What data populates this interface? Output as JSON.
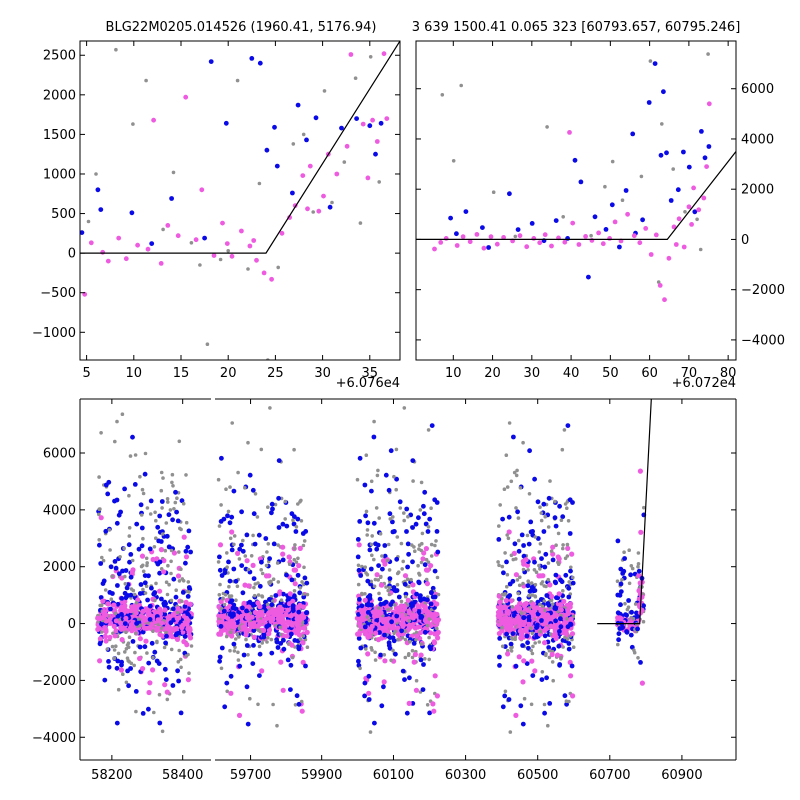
{
  "titles": {
    "left": "BLG22M0205.014526 (1960.41, 5176.94)",
    "right": "3 639 1500.41 0.065 323 [60793.657, 60795.246]"
  },
  "colors": {
    "gray": "#909090",
    "blue": "#0a0ae8",
    "magenta": "#ee5be0",
    "model": "#000000"
  },
  "chart_data": [
    {
      "id": "zoom_left",
      "type": "scatter",
      "offset_label": "+6.076e4",
      "xlim": [
        4.3,
        38.2
      ],
      "ylim": [
        -1350,
        2680
      ],
      "xticks": [
        5,
        10,
        15,
        20,
        25,
        30,
        35
      ],
      "yticks": [
        -1000,
        -500,
        0,
        500,
        1000,
        1500,
        2000,
        2500
      ],
      "yaxis_side": "left",
      "model_line": [
        [
          4.3,
          0
        ],
        [
          24.0,
          0
        ],
        [
          38.2,
          2680
        ]
      ],
      "series": [
        {
          "color": "gray",
          "points": [
            [
              5.2,
              400
            ],
            [
              6.0,
              1000
            ],
            [
              8.1,
              2570
            ],
            [
              9.9,
              1630
            ],
            [
              11.3,
              2180
            ],
            [
              13.1,
              300
            ],
            [
              14.2,
              1020
            ],
            [
              16.1,
              130
            ],
            [
              17.0,
              -150
            ],
            [
              17.8,
              -1150
            ],
            [
              19.2,
              -80
            ],
            [
              20.0,
              30
            ],
            [
              21.0,
              2180
            ],
            [
              22.1,
              -200
            ],
            [
              23.3,
              880
            ],
            [
              24.2,
              -1350
            ],
            [
              25.3,
              -180
            ],
            [
              26.9,
              1380
            ],
            [
              28.0,
              1500
            ],
            [
              29.0,
              520
            ],
            [
              30.2,
              2050
            ],
            [
              31.0,
              640
            ],
            [
              32.3,
              1150
            ],
            [
              33.5,
              2210
            ],
            [
              34.0,
              380
            ],
            [
              35.1,
              2480
            ],
            [
              36.0,
              900
            ]
          ]
        },
        {
          "color": "blue",
          "points": [
            [
              4.5,
              260
            ],
            [
              6.2,
              800
            ],
            [
              6.5,
              550
            ],
            [
              9.8,
              510
            ],
            [
              11.9,
              120
            ],
            [
              14.0,
              690
            ],
            [
              17.5,
              190
            ],
            [
              18.2,
              2420
            ],
            [
              19.8,
              1640
            ],
            [
              22.5,
              2460
            ],
            [
              23.4,
              2400
            ],
            [
              24.1,
              1300
            ],
            [
              24.9,
              1590
            ],
            [
              25.2,
              1100
            ],
            [
              26.8,
              760
            ],
            [
              27.4,
              1870
            ],
            [
              28.3,
              1430
            ],
            [
              29.3,
              1710
            ],
            [
              30.8,
              580
            ],
            [
              32.0,
              1580
            ],
            [
              33.6,
              1700
            ],
            [
              35.0,
              1610
            ],
            [
              35.6,
              1250
            ],
            [
              36.2,
              1640
            ]
          ]
        },
        {
          "color": "magenta",
          "points": [
            [
              4.8,
              -520
            ],
            [
              5.5,
              130
            ],
            [
              6.7,
              10
            ],
            [
              7.3,
              -100
            ],
            [
              8.4,
              190
            ],
            [
              9.2,
              -70
            ],
            [
              10.4,
              100
            ],
            [
              11.5,
              50
            ],
            [
              12.1,
              1680
            ],
            [
              12.9,
              -130
            ],
            [
              13.6,
              350
            ],
            [
              14.7,
              220
            ],
            [
              15.5,
              1970
            ],
            [
              16.6,
              170
            ],
            [
              17.2,
              800
            ],
            [
              18.5,
              -30
            ],
            [
              19.4,
              380
            ],
            [
              20.4,
              -40
            ],
            [
              21.4,
              280
            ],
            [
              22.3,
              90
            ],
            [
              23.0,
              -90
            ],
            [
              23.8,
              -250
            ],
            [
              24.6,
              -330
            ],
            [
              25.7,
              250
            ],
            [
              26.5,
              450
            ],
            [
              27.1,
              600
            ],
            [
              27.9,
              980
            ],
            [
              28.7,
              1100
            ],
            [
              29.6,
              530
            ],
            [
              30.1,
              720
            ],
            [
              30.6,
              1250
            ],
            [
              31.5,
              1000
            ],
            [
              32.6,
              1350
            ],
            [
              33.0,
              2510
            ],
            [
              34.3,
              1630
            ],
            [
              35.3,
              1680
            ],
            [
              35.8,
              1410
            ],
            [
              36.5,
              2520
            ],
            [
              36.8,
              1700
            ],
            [
              34.8,
              950
            ],
            [
              28.4,
              560
            ],
            [
              22.7,
              160
            ],
            [
              19.9,
              120
            ]
          ]
        }
      ]
    },
    {
      "id": "zoom_right",
      "type": "scatter",
      "offset_label": "+6.072e4",
      "xlim": [
        0.5,
        82.0
      ],
      "ylim": [
        -4800,
        7900
      ],
      "xticks": [
        10,
        20,
        30,
        40,
        50,
        60,
        70,
        80
      ],
      "yticks": [
        -4000,
        -2000,
        0,
        2000,
        4000,
        6000
      ],
      "yaxis_side": "right",
      "model_line": [
        [
          0.5,
          0
        ],
        [
          64.5,
          0
        ],
        [
          82.0,
          3500
        ]
      ],
      "series": [
        {
          "color": "gray",
          "points": [
            [
              7.2,
              5760
            ],
            [
              10.1,
              3130
            ],
            [
              12.0,
              6130
            ],
            [
              20.3,
              1880
            ],
            [
              25.8,
              120
            ],
            [
              33.9,
              4480
            ],
            [
              38.0,
              900
            ],
            [
              45.1,
              150
            ],
            [
              48.6,
              2100
            ],
            [
              50.6,
              3100
            ],
            [
              53.1,
              1560
            ],
            [
              57.9,
              2510
            ],
            [
              60.2,
              7100
            ],
            [
              62.3,
              -1700
            ],
            [
              63.1,
              4600
            ],
            [
              66.0,
              2800
            ],
            [
              69.0,
              1100
            ],
            [
              72.1,
              800
            ],
            [
              74.9,
              7380
            ],
            [
              73.0,
              -400
            ]
          ]
        },
        {
          "color": "blue",
          "points": [
            [
              9.3,
              850
            ],
            [
              10.8,
              230
            ],
            [
              13.2,
              1110
            ],
            [
              17.4,
              470
            ],
            [
              19.0,
              -320
            ],
            [
              24.3,
              1820
            ],
            [
              26.5,
              390
            ],
            [
              30.1,
              640
            ],
            [
              33.1,
              -50
            ],
            [
              36.2,
              750
            ],
            [
              39.1,
              40
            ],
            [
              41.0,
              3150
            ],
            [
              42.5,
              2290
            ],
            [
              44.4,
              -1500
            ],
            [
              46.1,
              900
            ],
            [
              48.9,
              400
            ],
            [
              50.5,
              1380
            ],
            [
              54.0,
              1950
            ],
            [
              56.4,
              250
            ],
            [
              58.2,
              780
            ],
            [
              59.9,
              5450
            ],
            [
              61.4,
              7000
            ],
            [
              62.9,
              3350
            ],
            [
              63.5,
              5880
            ],
            [
              64.3,
              3450
            ],
            [
              65.5,
              1550
            ],
            [
              67.3,
              1980
            ],
            [
              68.6,
              3480
            ],
            [
              70.1,
              2880
            ],
            [
              71.5,
              1100
            ],
            [
              73.2,
              4300
            ],
            [
              74.1,
              3250
            ],
            [
              75.1,
              3700
            ],
            [
              55.7,
              4200
            ],
            [
              52.3,
              -300
            ]
          ]
        },
        {
          "color": "magenta",
          "points": [
            [
              5.2,
              -380
            ],
            [
              6.8,
              -120
            ],
            [
              8.2,
              40
            ],
            [
              11.0,
              -240
            ],
            [
              12.5,
              110
            ],
            [
              14.3,
              -90
            ],
            [
              16.0,
              200
            ],
            [
              17.8,
              -350
            ],
            [
              19.6,
              110
            ],
            [
              21.2,
              -190
            ],
            [
              22.8,
              80
            ],
            [
              25.1,
              -60
            ],
            [
              27.0,
              150
            ],
            [
              28.7,
              -290
            ],
            [
              30.5,
              40
            ],
            [
              32.0,
              -130
            ],
            [
              33.4,
              190
            ],
            [
              35.0,
              -260
            ],
            [
              36.8,
              60
            ],
            [
              38.4,
              -110
            ],
            [
              39.6,
              4260
            ],
            [
              40.4,
              650
            ],
            [
              42.0,
              -200
            ],
            [
              43.7,
              120
            ],
            [
              45.3,
              -40
            ],
            [
              47.0,
              260
            ],
            [
              48.2,
              -170
            ],
            [
              49.8,
              40
            ],
            [
              51.2,
              700
            ],
            [
              52.7,
              -60
            ],
            [
              54.4,
              1000
            ],
            [
              56.1,
              150
            ],
            [
              57.5,
              -130
            ],
            [
              59.0,
              440
            ],
            [
              60.4,
              -600
            ],
            [
              61.7,
              180
            ],
            [
              62.7,
              -1830
            ],
            [
              63.8,
              -2400
            ],
            [
              64.9,
              -750
            ],
            [
              66.2,
              500
            ],
            [
              67.5,
              820
            ],
            [
              68.8,
              -300
            ],
            [
              70.0,
              1300
            ],
            [
              71.2,
              2050
            ],
            [
              72.5,
              1180
            ],
            [
              73.8,
              1650
            ],
            [
              74.5,
              2900
            ],
            [
              75.2,
              5400
            ],
            [
              70.7,
              600
            ],
            [
              66.8,
              -200
            ]
          ]
        }
      ]
    },
    {
      "id": "full_lightcurve",
      "type": "scatter",
      "ylim": [
        -4800,
        7900
      ],
      "yticks": [
        -4000,
        -2000,
        0,
        2000,
        4000,
        6000
      ],
      "yaxis_side": "left",
      "segments": [
        {
          "xlim": [
            58110,
            58480
          ],
          "xticks": [
            58200,
            58400
          ]
        },
        {
          "xlim": [
            59600,
            59960
          ],
          "xticks": [
            59700,
            59900
          ]
        },
        {
          "xlim": [
            59960,
            61050
          ],
          "xticks": [
            60100,
            60300,
            60500,
            60700,
            60900
          ]
        }
      ],
      "model_line": [
        [
          60665,
          0
        ],
        [
          60783,
          0
        ],
        [
          60815,
          7900
        ]
      ],
      "seasons": [
        [
          58160,
          58425
        ],
        [
          59610,
          59860
        ],
        [
          60000,
          60225
        ],
        [
          60390,
          60600
        ],
        [
          60720,
          60795
        ]
      ]
    }
  ]
}
